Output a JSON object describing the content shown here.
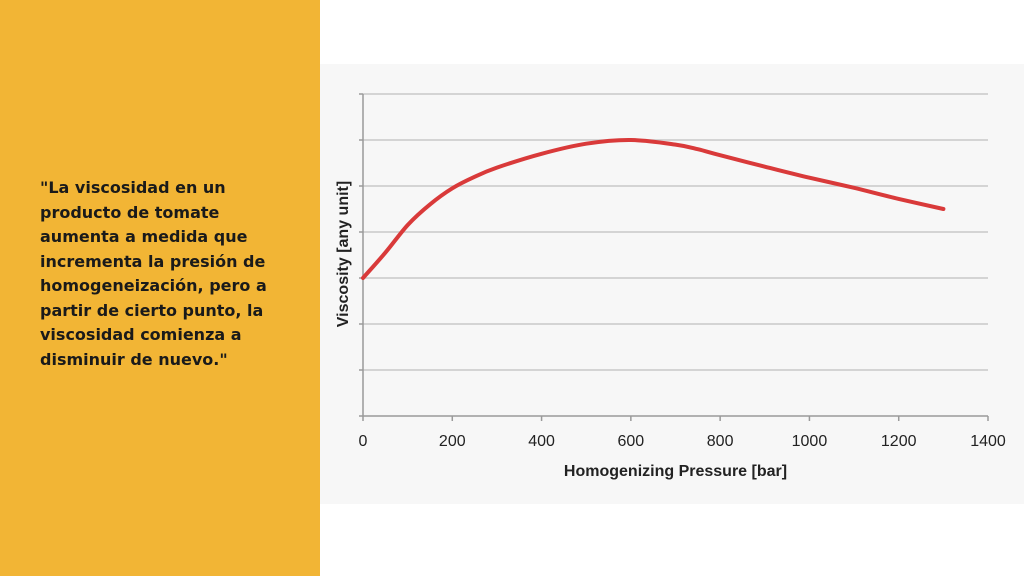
{
  "quote": {
    "text": "\"La viscosidad en un producto de tomate aumenta a medida que incrementa la presión de homogeneización, pero a partir de cierto punto, la viscosidad comienza a disminuir de nuevo.\""
  },
  "colors": {
    "panel": "#f2b535",
    "line": "#d93a3a",
    "grid": "#c8c8c8"
  },
  "chart_data": {
    "type": "line",
    "title": "",
    "xlabel": "Homogenizing Pressure [bar]",
    "ylabel": "Viscosity [any unit]",
    "xlim": [
      0,
      1400
    ],
    "ylim": [
      0,
      7
    ],
    "x_ticks": [
      "0",
      "200",
      "400",
      "600",
      "800",
      "1000",
      "1200",
      "1400"
    ],
    "y_tick_labels_shown": false,
    "grid": true,
    "legend": "none",
    "series": [
      {
        "x": [
          0,
          50,
          100,
          150,
          200,
          250,
          300,
          400,
          500,
          600,
          700,
          750,
          800,
          900,
          1000,
          1100,
          1200,
          1300
        ],
        "y": [
          3.0,
          3.55,
          4.15,
          4.6,
          4.95,
          5.2,
          5.4,
          5.7,
          5.92,
          6.0,
          5.9,
          5.8,
          5.67,
          5.42,
          5.18,
          4.96,
          4.72,
          4.5
        ]
      }
    ]
  }
}
